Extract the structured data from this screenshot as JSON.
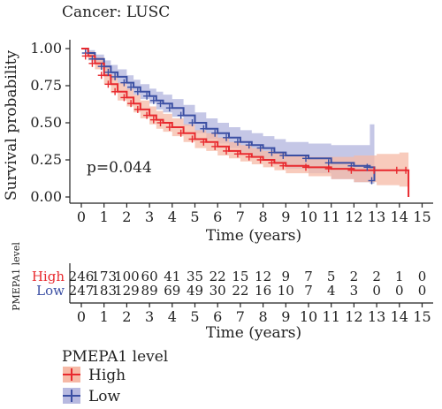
{
  "header": {
    "cancer_label": "Cancer: LUSC"
  },
  "chart_data": {
    "type": "line",
    "subtype": "kaplan-meier",
    "ylabel": "Survival probability",
    "xlabel": "Time (years)",
    "xlim": [
      0,
      15
    ],
    "ylim": [
      0,
      1
    ],
    "x_ticks": [
      "0",
      "1",
      "2",
      "3",
      "4",
      "5",
      "6",
      "7",
      "8",
      "9",
      "10",
      "11",
      "12",
      "13",
      "14",
      "15"
    ],
    "y_ticks": [
      "0.00",
      "0.25",
      "0.50",
      "0.75",
      "1.00"
    ],
    "pvalue_text": "p=0.044",
    "grid": false,
    "series": [
      {
        "name": "High",
        "color": "#e8292e",
        "fill": "#f6b9a6",
        "x": [
          0,
          0.3,
          0.6,
          1,
          1.3,
          1.6,
          2,
          2.3,
          2.6,
          3,
          3.3,
          3.6,
          4,
          4.5,
          5,
          5.5,
          6,
          6.5,
          7,
          7.5,
          8,
          8.5,
          9,
          10,
          11,
          12,
          13,
          14,
          14.4,
          14.4
        ],
        "y": [
          1.0,
          0.95,
          0.9,
          0.82,
          0.76,
          0.71,
          0.67,
          0.63,
          0.59,
          0.55,
          0.52,
          0.5,
          0.47,
          0.43,
          0.39,
          0.37,
          0.34,
          0.31,
          0.29,
          0.27,
          0.25,
          0.23,
          0.21,
          0.2,
          0.19,
          0.18,
          0.18,
          0.18,
          0.18,
          0.0
        ],
        "upper": [
          1.0,
          0.98,
          0.94,
          0.88,
          0.82,
          0.77,
          0.73,
          0.69,
          0.65,
          0.61,
          0.58,
          0.56,
          0.53,
          0.49,
          0.45,
          0.43,
          0.4,
          0.37,
          0.35,
          0.33,
          0.31,
          0.3,
          0.28,
          0.27,
          0.27,
          0.28,
          0.29,
          0.3,
          0.3,
          0.3
        ],
        "lower": [
          1.0,
          0.92,
          0.86,
          0.76,
          0.7,
          0.65,
          0.61,
          0.57,
          0.53,
          0.49,
          0.46,
          0.44,
          0.41,
          0.37,
          0.33,
          0.31,
          0.28,
          0.26,
          0.24,
          0.22,
          0.2,
          0.18,
          0.16,
          0.14,
          0.12,
          0.1,
          0.08,
          0.07,
          0.07,
          0.07
        ]
      },
      {
        "name": "Low",
        "color": "#3b4fa3",
        "fill": "#b7b9e0",
        "x": [
          0,
          0.3,
          0.6,
          1,
          1.3,
          1.6,
          2,
          2.3,
          2.6,
          3,
          3.3,
          3.6,
          4,
          4.5,
          5,
          5.5,
          6,
          6.5,
          7,
          7.5,
          8,
          8.5,
          9,
          10,
          11,
          12,
          12.7,
          12.9
        ],
        "y": [
          1.0,
          0.97,
          0.93,
          0.88,
          0.84,
          0.81,
          0.77,
          0.74,
          0.71,
          0.68,
          0.65,
          0.63,
          0.6,
          0.55,
          0.5,
          0.46,
          0.43,
          0.4,
          0.37,
          0.35,
          0.33,
          0.3,
          0.28,
          0.26,
          0.23,
          0.21,
          0.2,
          0.11
        ],
        "upper": [
          1.0,
          0.99,
          0.96,
          0.92,
          0.89,
          0.86,
          0.82,
          0.79,
          0.76,
          0.73,
          0.71,
          0.69,
          0.66,
          0.62,
          0.57,
          0.53,
          0.5,
          0.47,
          0.45,
          0.43,
          0.41,
          0.39,
          0.37,
          0.36,
          0.35,
          0.35,
          0.49,
          0.49
        ],
        "lower": [
          1.0,
          0.95,
          0.9,
          0.84,
          0.79,
          0.76,
          0.72,
          0.69,
          0.66,
          0.63,
          0.59,
          0.57,
          0.54,
          0.48,
          0.43,
          0.39,
          0.36,
          0.33,
          0.3,
          0.27,
          0.25,
          0.22,
          0.19,
          0.16,
          0.12,
          0.1,
          0.09,
          0.09
        ]
      }
    ],
    "risk_table": {
      "ylabel": "PMEPA1 level",
      "xlabel": "Time (years)",
      "rows": [
        {
          "name": "High",
          "color": "#e8292e",
          "counts": [
            "246",
            "173",
            "100",
            "60",
            "41",
            "35",
            "22",
            "15",
            "12",
            "9",
            "7",
            "5",
            "2",
            "2",
            "1",
            "0"
          ]
        },
        {
          "name": "Low",
          "color": "#3b4fa3",
          "counts": [
            "247",
            "183",
            "129",
            "89",
            "69",
            "49",
            "30",
            "22",
            "16",
            "10",
            "7",
            "4",
            "3",
            "0",
            "0",
            "0"
          ]
        }
      ]
    },
    "legend": {
      "title": "PMEPA1 level",
      "placement": "bottom-left",
      "items": [
        {
          "label": "High",
          "color": "#e8292e",
          "fill": "#f6b9a6"
        },
        {
          "label": "Low",
          "color": "#3b4fa3",
          "fill": "#b7b9e0"
        }
      ]
    }
  }
}
